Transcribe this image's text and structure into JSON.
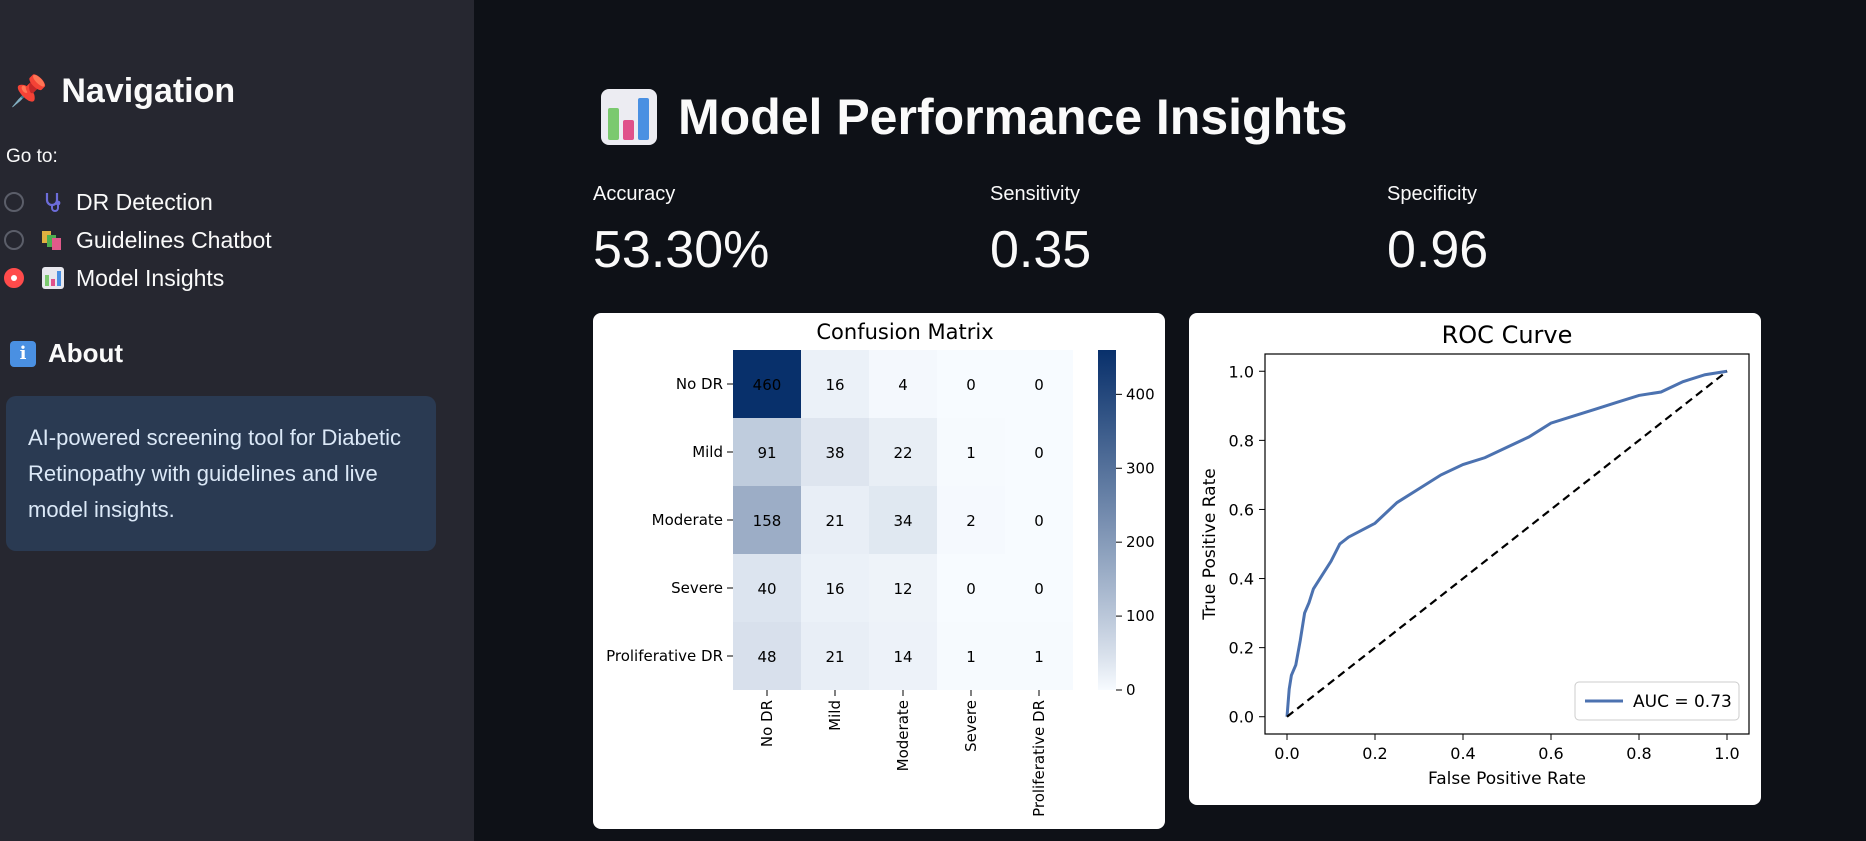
{
  "sidebar": {
    "nav_title": "Navigation",
    "nav_emoji": "📌",
    "goto_label": "Go to:",
    "items": [
      {
        "label": "DR Detection",
        "icon": "stethoscope-icon",
        "selected": false
      },
      {
        "label": "Guidelines Chatbot",
        "icon": "books-icon",
        "selected": false
      },
      {
        "label": "Model Insights",
        "icon": "bar-chart-icon",
        "selected": true
      }
    ],
    "about_title": "About",
    "about_text": "AI-powered screening tool for Diabetic Retinopathy with guidelines and live model insights."
  },
  "main": {
    "title": "Model Performance Insights",
    "metrics": [
      {
        "label": "Accuracy",
        "value": "53.30%"
      },
      {
        "label": "Sensitivity",
        "value": "0.35"
      },
      {
        "label": "Specificity",
        "value": "0.96"
      }
    ]
  },
  "chart_data": [
    {
      "type": "heatmap",
      "title": "Confusion Matrix",
      "row_labels": [
        "No DR",
        "Mild",
        "Moderate",
        "Severe",
        "Proliferative DR"
      ],
      "col_labels": [
        "No DR",
        "Mild",
        "Moderate",
        "Severe",
        "Proliferative DR"
      ],
      "values": [
        [
          460,
          16,
          4,
          0,
          0
        ],
        [
          91,
          38,
          22,
          1,
          0
        ],
        [
          158,
          21,
          34,
          2,
          0
        ],
        [
          40,
          16,
          12,
          0,
          0
        ],
        [
          48,
          21,
          14,
          1,
          1
        ]
      ],
      "colorbar_ticks": [
        0,
        100,
        200,
        300,
        400
      ],
      "colormap": "Blues"
    },
    {
      "type": "line",
      "title": "ROC Curve",
      "xlabel": "False Positive Rate",
      "ylabel": "True Positive Rate",
      "xlim": [
        0,
        1
      ],
      "ylim": [
        0,
        1
      ],
      "xticks": [
        "0.0",
        "0.2",
        "0.4",
        "0.6",
        "0.8",
        "1.0"
      ],
      "yticks": [
        "0.0",
        "0.2",
        "0.4",
        "0.6",
        "0.8",
        "1.0"
      ],
      "legend": "AUC = 0.73",
      "legend_position": "lower-right",
      "series": [
        {
          "name": "AUC = 0.73",
          "color": "#4c72b0",
          "x": [
            0,
            0.005,
            0.01,
            0.02,
            0.03,
            0.04,
            0.05,
            0.06,
            0.08,
            0.1,
            0.12,
            0.14,
            0.17,
            0.2,
            0.25,
            0.3,
            0.35,
            0.4,
            0.45,
            0.5,
            0.55,
            0.6,
            0.65,
            0.7,
            0.75,
            0.8,
            0.85,
            0.9,
            0.95,
            1.0
          ],
          "y": [
            0,
            0.08,
            0.12,
            0.15,
            0.22,
            0.3,
            0.33,
            0.37,
            0.41,
            0.45,
            0.5,
            0.52,
            0.54,
            0.56,
            0.62,
            0.66,
            0.7,
            0.73,
            0.75,
            0.78,
            0.81,
            0.85,
            0.87,
            0.89,
            0.91,
            0.93,
            0.94,
            0.97,
            0.99,
            1.0
          ]
        },
        {
          "name": "",
          "color": "#000000",
          "dashed": true,
          "x": [
            0,
            1
          ],
          "y": [
            0,
            1
          ]
        }
      ]
    }
  ]
}
